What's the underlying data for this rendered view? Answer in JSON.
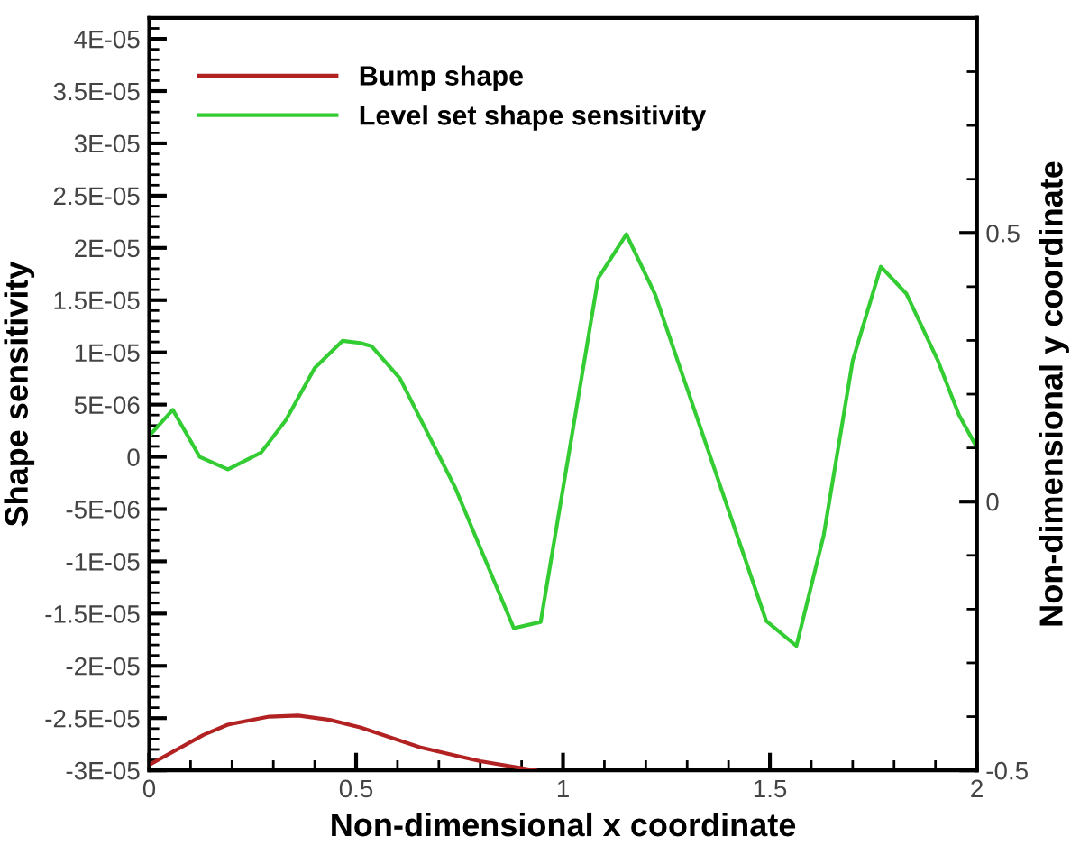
{
  "chart_data": {
    "type": "line",
    "xlabel": "Non-dimensional x coordinate",
    "ylabel": "Shape sensitivity",
    "y2label": "Non-dimensional y coordinate",
    "series": [
      {
        "name": "Bump shape",
        "color": "#b22222",
        "axis": "y2",
        "x": [
          0,
          0.131,
          0.19,
          0.29,
          0.36,
          0.436,
          0.51,
          0.654,
          0.8,
          0.933
        ],
        "values": [
          -0.49,
          -0.434,
          -0.415,
          -0.4,
          -0.398,
          -0.406,
          -0.42,
          -0.457,
          -0.483,
          -0.5
        ]
      },
      {
        "name": "Level set shape sensitivity",
        "color": "#33cc33",
        "x": [
          0,
          0.057,
          0.122,
          0.19,
          0.27,
          0.33,
          0.4,
          0.467,
          0.51,
          0.537,
          0.606,
          0.74,
          0.881,
          0.946,
          1.085,
          1.153,
          1.222,
          1.491,
          1.564,
          1.63,
          1.7,
          1.768,
          1.83,
          1.906,
          1.957,
          2
        ],
        "values": [
          2e-06,
          4.5e-06,
          0,
          -1.2e-06,
          4e-07,
          3.5e-06,
          8.5e-06,
          1.11e-05,
          1.09e-05,
          1.06e-05,
          7.5e-06,
          -3e-06,
          -1.64e-05,
          -1.58e-05,
          1.71e-05,
          2.13e-05,
          1.56e-05,
          -1.57e-05,
          -1.81e-05,
          -7.5e-06,
          9.2e-06,
          1.82e-05,
          1.56e-05,
          9.2e-06,
          4e-06,
          9e-07
        ]
      }
    ],
    "xlim": [
      0,
      2
    ],
    "xticks": [
      0,
      0.5,
      1,
      1.5,
      2
    ],
    "ylim": [
      -3e-05,
      4.2e-05
    ],
    "yticks": [
      {
        "value": -3e-05,
        "label": "-3E-05"
      },
      {
        "value": -2.5e-05,
        "label": "-2.5E-05"
      },
      {
        "value": -2e-05,
        "label": "-2E-05"
      },
      {
        "value": -1.5e-05,
        "label": "-1.5E-05"
      },
      {
        "value": -1e-05,
        "label": "-1E-05"
      },
      {
        "value": -5e-06,
        "label": "-5E-06"
      },
      {
        "value": 0,
        "label": "0"
      },
      {
        "value": 5e-06,
        "label": "5E-06"
      },
      {
        "value": 1e-05,
        "label": "1E-05"
      },
      {
        "value": 1.5e-05,
        "label": "1.5E-05"
      },
      {
        "value": 2e-05,
        "label": "2E-05"
      },
      {
        "value": 2.5e-05,
        "label": "2.5E-05"
      },
      {
        "value": 3e-05,
        "label": "3E-05"
      },
      {
        "value": 3.5e-05,
        "label": "3.5E-05"
      },
      {
        "value": 4e-05,
        "label": "4E-05"
      }
    ],
    "y2lim": [
      -0.5,
      0.9
    ],
    "y2ticks": [
      -0.5,
      0,
      0.5
    ],
    "legend": "top left",
    "grid": false,
    "marker": "none",
    "line_style": "solid"
  }
}
